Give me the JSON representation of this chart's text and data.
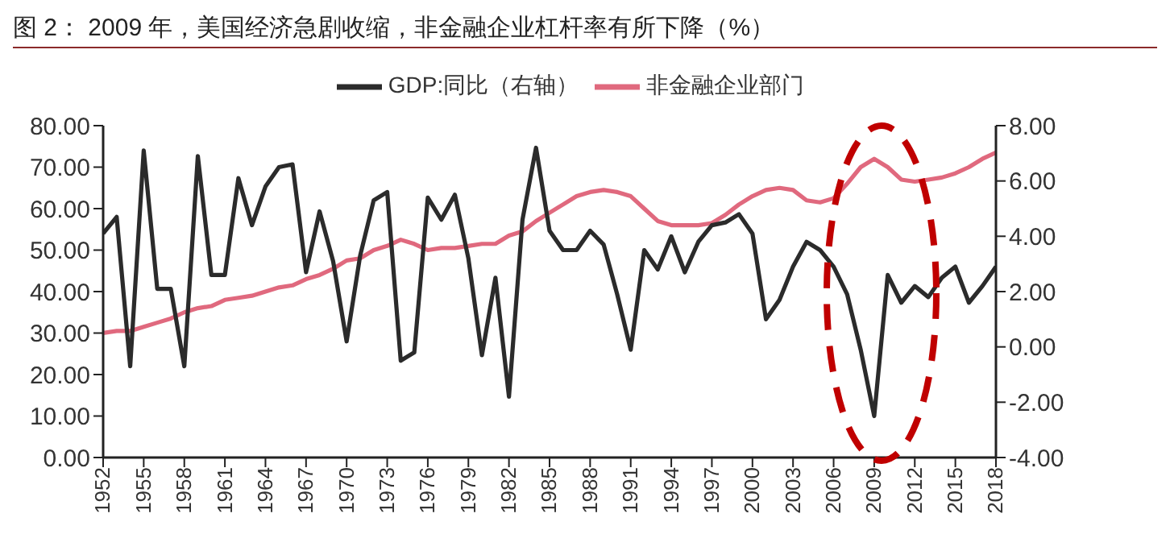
{
  "chart_data": {
    "type": "line",
    "title": "图 2：  2009 年，美国经济急剧收缩，非金融企业杠杆率有所下降（%）",
    "x": [
      1952,
      1953,
      1954,
      1955,
      1956,
      1957,
      1958,
      1959,
      1960,
      1961,
      1962,
      1963,
      1964,
      1965,
      1966,
      1967,
      1968,
      1969,
      1970,
      1971,
      1972,
      1973,
      1974,
      1975,
      1976,
      1977,
      1978,
      1979,
      1980,
      1981,
      1982,
      1983,
      1984,
      1985,
      1986,
      1987,
      1988,
      1989,
      1990,
      1991,
      1992,
      1993,
      1994,
      1995,
      1996,
      1997,
      1998,
      1999,
      2000,
      2001,
      2002,
      2003,
      2004,
      2005,
      2006,
      2007,
      2008,
      2009,
      2010,
      2011,
      2012,
      2013,
      2014,
      2015,
      2016,
      2017,
      2018
    ],
    "xlim": [
      1952,
      2018
    ],
    "xticks": [
      1952,
      1955,
      1958,
      1961,
      1964,
      1967,
      1970,
      1973,
      1976,
      1979,
      1982,
      1985,
      1988,
      1991,
      1994,
      1997,
      2000,
      2003,
      2006,
      2009,
      2012,
      2015,
      2018
    ],
    "ylim": [
      0,
      80
    ],
    "yticks": [
      {
        "value": 0,
        "label": "0.00"
      },
      {
        "value": 10,
        "label": "10.00"
      },
      {
        "value": 20,
        "label": "20.00"
      },
      {
        "value": 30,
        "label": "30.00"
      },
      {
        "value": 40,
        "label": "40.00"
      },
      {
        "value": 50,
        "label": "50.00"
      },
      {
        "value": 60,
        "label": "60.00"
      },
      {
        "value": 70,
        "label": "70.00"
      },
      {
        "value": 80,
        "label": "80.00"
      }
    ],
    "y2lim": [
      -4,
      8
    ],
    "y2ticks": [
      {
        "value": -4,
        "label": "-4.00"
      },
      {
        "value": -2,
        "label": "-2.00"
      },
      {
        "value": 0,
        "label": "0.00"
      },
      {
        "value": 2,
        "label": "2.00"
      },
      {
        "value": 4,
        "label": "4.00"
      },
      {
        "value": 6,
        "label": "6.00"
      },
      {
        "value": 8,
        "label": "8.00"
      }
    ],
    "series": [
      {
        "name": "非金融企业部门",
        "color": "#e0697e",
        "values": [
          30,
          30.5,
          30.5,
          31.5,
          32.5,
          33.5,
          35,
          36,
          36.5,
          38,
          38.5,
          39,
          40,
          41,
          41.5,
          43,
          44,
          45.5,
          47.5,
          48,
          50,
          51,
          52.5,
          51.5,
          50,
          50.5,
          50.5,
          51,
          51.5,
          51.5,
          53.5,
          54.5,
          57,
          59,
          61,
          63,
          64,
          64.5,
          64,
          63,
          60,
          57,
          56,
          56,
          56,
          56.5,
          58.5,
          61,
          63,
          64.5,
          65,
          64.5,
          62,
          61.5,
          62.5,
          66,
          70,
          72,
          70,
          67,
          66.5,
          67,
          67.5,
          68.5,
          70,
          72,
          73.5
        ]
      },
      {
        "name": "GDP:同比（右轴）",
        "color": "#2b2b2b",
        "axis": "y2",
        "values": [
          4.1,
          4.7,
          -0.7,
          7.1,
          2.1,
          2.1,
          -0.7,
          6.9,
          2.6,
          2.6,
          6.1,
          4.4,
          5.8,
          6.5,
          6.6,
          2.7,
          4.9,
          3.1,
          0.2,
          3.3,
          5.3,
          5.6,
          -0.5,
          -0.2,
          5.4,
          4.6,
          5.5,
          3.2,
          -0.3,
          2.5,
          -1.8,
          4.6,
          7.2,
          4.2,
          3.5,
          3.5,
          4.2,
          3.7,
          1.9,
          -0.1,
          3.5,
          2.8,
          4.0,
          2.7,
          3.8,
          4.4,
          4.5,
          4.8,
          4.1,
          1.0,
          1.7,
          2.9,
          3.8,
          3.5,
          2.9,
          1.9,
          -0.1,
          -2.5,
          2.6,
          1.6,
          2.2,
          1.8,
          2.5,
          2.9,
          1.6,
          2.2,
          2.9
        ]
      }
    ],
    "legend": "top",
    "grid": false,
    "marker": "none",
    "line_style": "solid"
  }
}
